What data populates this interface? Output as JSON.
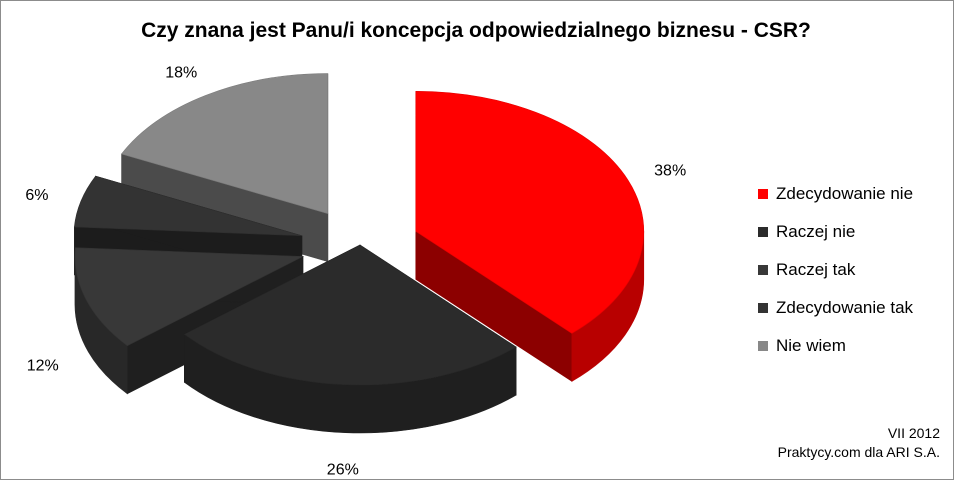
{
  "chart_data": {
    "type": "pie",
    "title": "Czy znana  jest Panu/i koncepcja  odpowiedzialnego biznesu - CSR?",
    "categories": [
      "Zdecydowanie nie",
      "Raczej nie",
      "Raczej tak",
      "Zdecydowanie tak",
      "Nie wiem"
    ],
    "values": [
      38,
      26,
      12,
      6,
      18
    ],
    "labels": [
      "38%",
      "26%",
      "12%",
      "6%",
      "18%"
    ],
    "colors": [
      "#ff0000",
      "#2b2b2b",
      "#383838",
      "#333333",
      "#888888"
    ],
    "legend_position": "right",
    "exploded": [
      true,
      false,
      true,
      true,
      true
    ]
  },
  "legend": [
    {
      "label": " Zdecydowanie nie",
      "color": "#ff0000"
    },
    {
      "label": "Raczej nie",
      "color": "#2b2b2b"
    },
    {
      "label": " Raczej tak",
      "color": "#383838"
    },
    {
      "label": "Zdecydowanie tak",
      "color": "#333333"
    },
    {
      "label": "Nie wiem",
      "color": "#888888"
    }
  ],
  "footer": {
    "line1": "VII 2012",
    "line2": "Praktycy.com dla ARI S.A."
  }
}
